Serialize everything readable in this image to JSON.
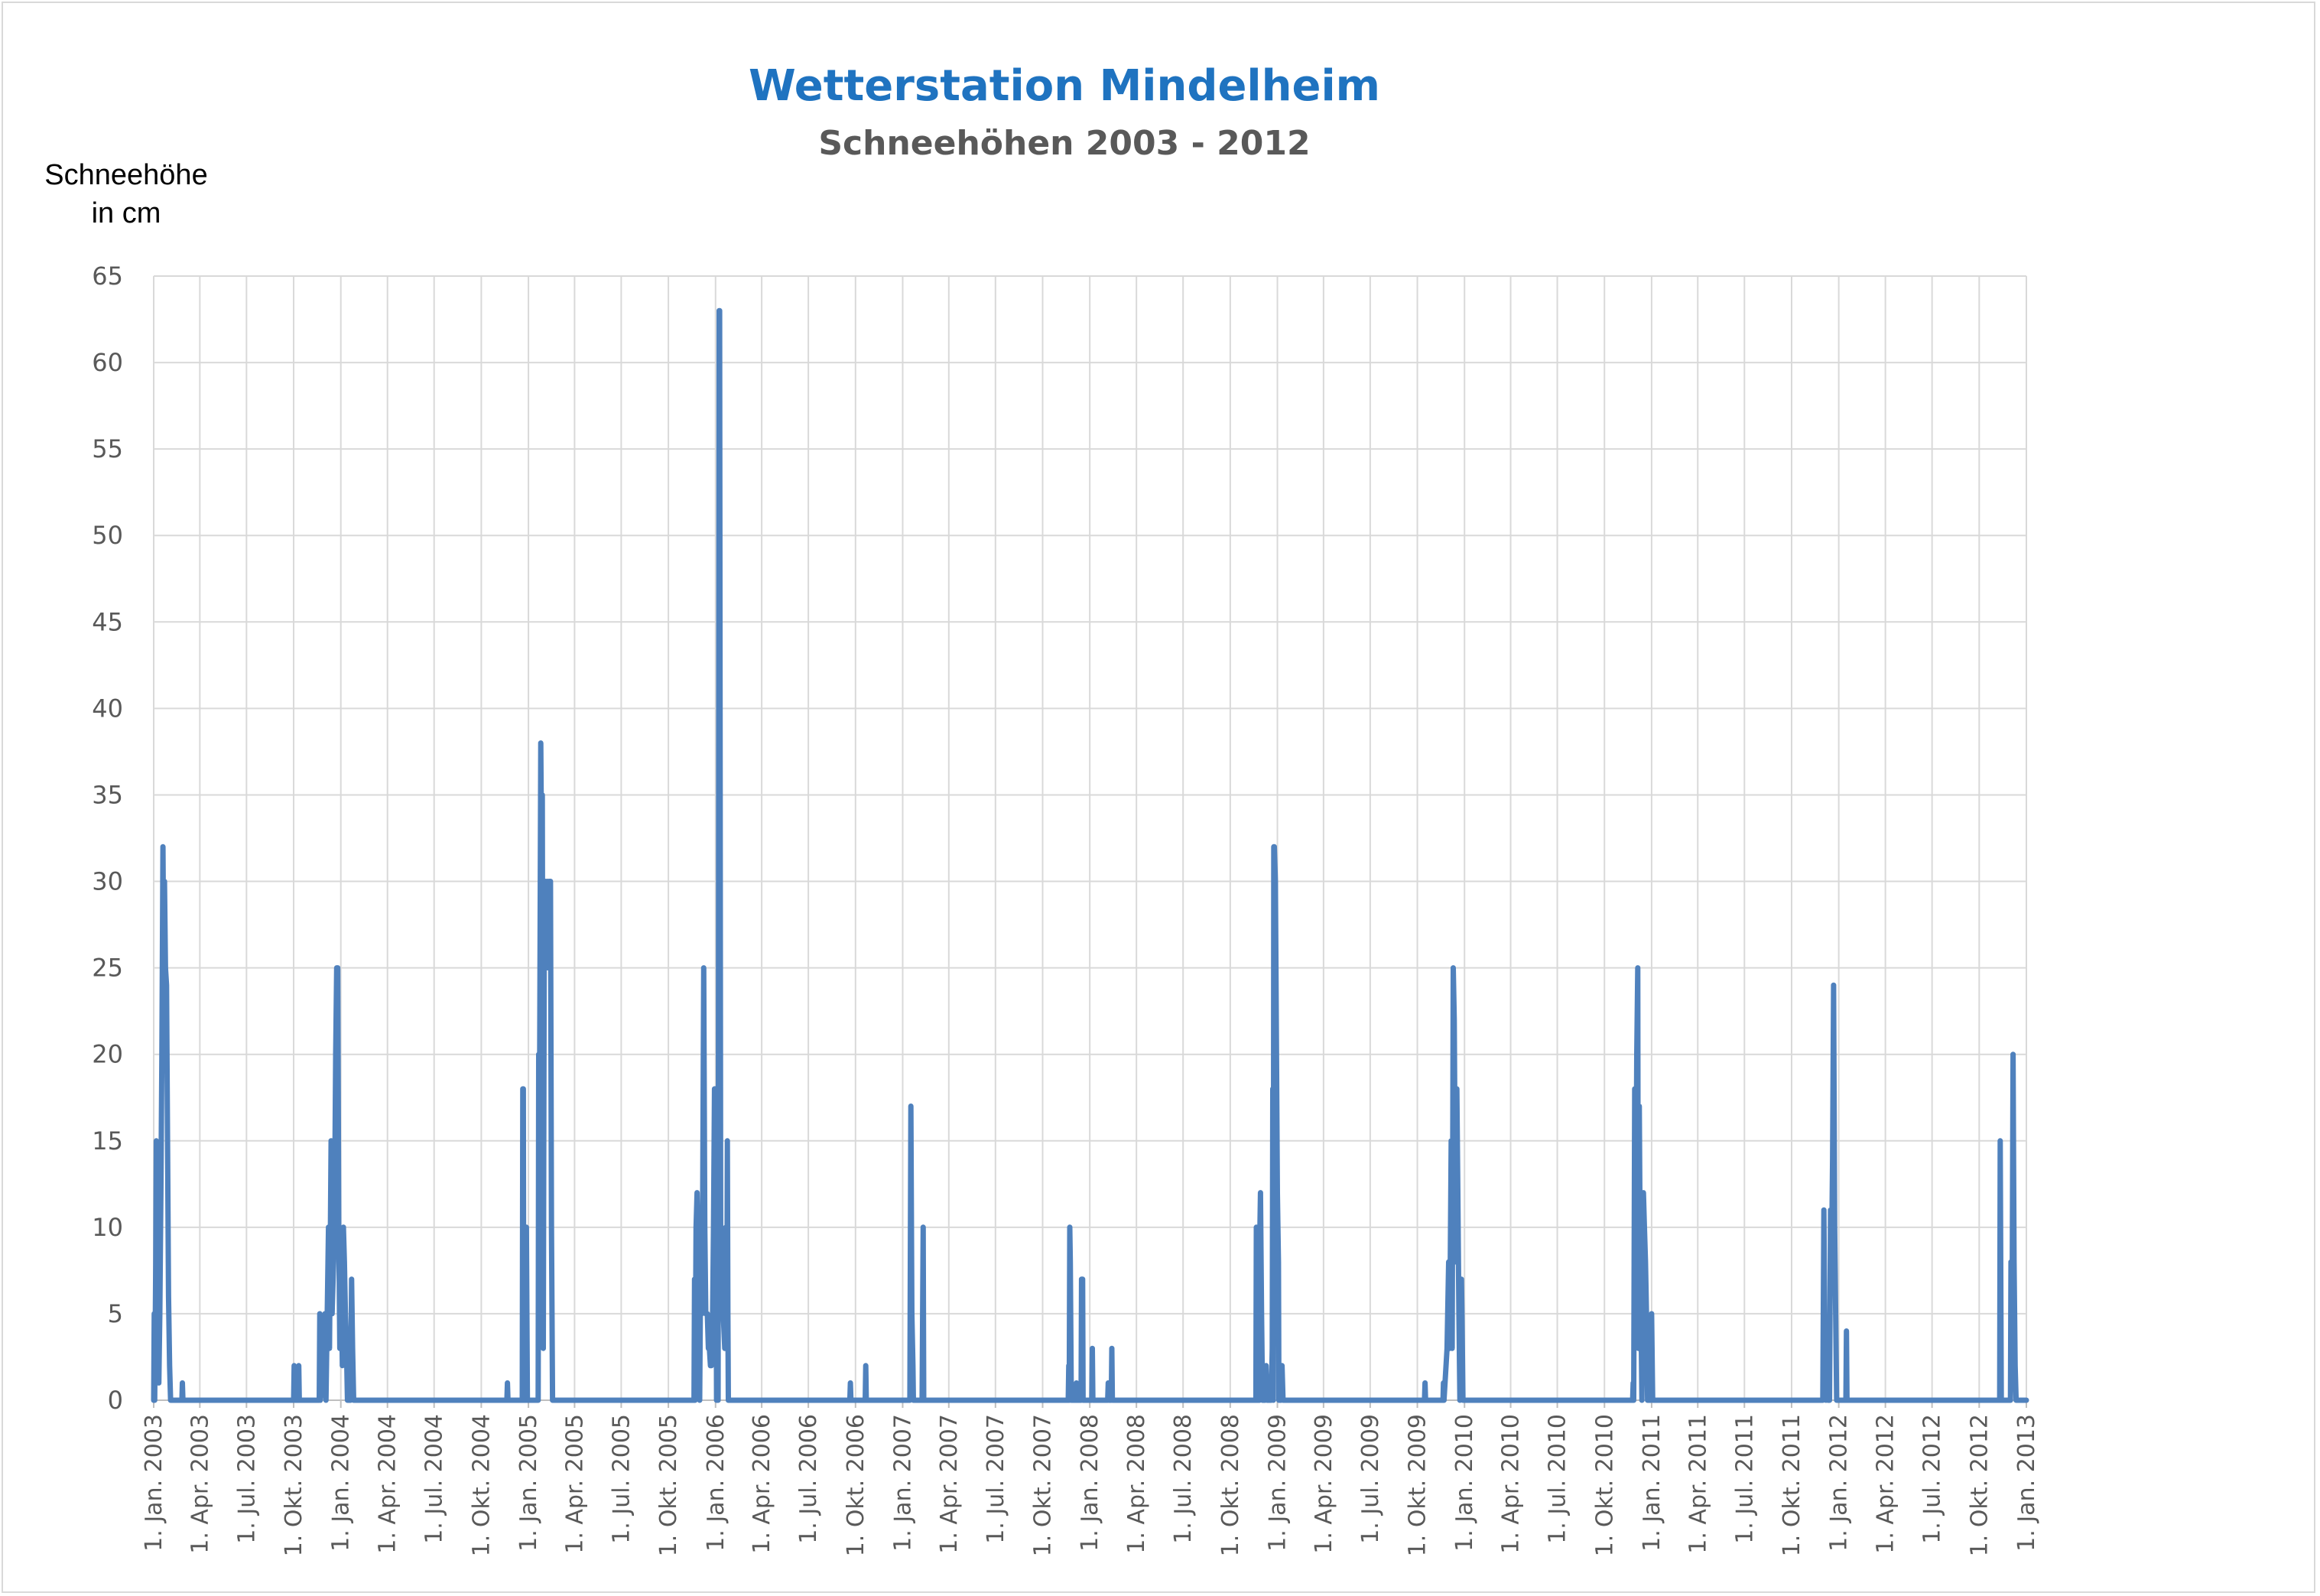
{
  "chart_data": {
    "type": "line",
    "title": "Wetterstation Mindelheim",
    "subtitle": "Schneehöhen 2003 - 2012",
    "ylabel_lines": [
      "Schneehöhe",
      "in  cm"
    ],
    "xlabel": "",
    "ylim": [
      0,
      65
    ],
    "yticks": [
      0,
      5,
      10,
      15,
      20,
      25,
      30,
      35,
      40,
      45,
      50,
      55,
      60,
      65
    ],
    "xlim": [
      "2003-01-01",
      "2013-01-01"
    ],
    "xtick_dates": [
      "2003-01-01",
      "2003-04-01",
      "2003-07-01",
      "2003-10-01",
      "2004-01-01",
      "2004-04-01",
      "2004-07-01",
      "2004-10-01",
      "2005-01-01",
      "2005-04-01",
      "2005-07-01",
      "2005-10-01",
      "2006-01-01",
      "2006-04-01",
      "2006-07-01",
      "2006-10-01",
      "2007-01-01",
      "2007-04-01",
      "2007-07-01",
      "2007-10-01",
      "2008-01-01",
      "2008-04-01",
      "2008-07-01",
      "2008-10-01",
      "2009-01-01",
      "2009-04-01",
      "2009-07-01",
      "2009-10-01",
      "2010-01-01",
      "2010-04-01",
      "2010-07-01",
      "2010-10-01",
      "2011-01-01",
      "2011-04-01",
      "2011-07-01",
      "2011-10-01",
      "2012-01-01",
      "2012-04-01",
      "2012-07-01",
      "2012-10-01",
      "2013-01-01"
    ],
    "xtick_labels": [
      "1. Jan. 2003",
      "1. Apr. 2003",
      "1. Jul. 2003",
      "1. Okt. 2003",
      "1. Jan. 2004",
      "1. Apr. 2004",
      "1. Jul. 2004",
      "1. Okt. 2004",
      "1. Jan. 2005",
      "1. Apr. 2005",
      "1. Jul. 2005",
      "1. Okt. 2005",
      "1. Jan. 2006",
      "1. Apr. 2006",
      "1. Jul. 2006",
      "1. Okt. 2006",
      "1. Jan. 2007",
      "1. Apr. 2007",
      "1. Jul. 2007",
      "1. Okt. 2007",
      "1. Jan. 2008",
      "1. Apr. 2008",
      "1. Jul. 2008",
      "1. Okt. 2008",
      "1. Jan. 2009",
      "1. Apr. 2009",
      "1. Jul. 2009",
      "1. Okt. 2009",
      "1. Jan. 2010",
      "1. Apr. 2010",
      "1. Jul. 2010",
      "1. Okt. 2010",
      "1. Jan. 2011",
      "1. Apr. 2011",
      "1. Jul. 2011",
      "1. Okt. 2011",
      "1. Jan. 2012",
      "1. Apr. 2012",
      "1. Jul. 2012",
      "1. Okt. 2012",
      "1. Jan. 2013"
    ],
    "grid": true,
    "legend": "none",
    "series_color": "#4f81bd",
    "series": [
      {
        "points": [
          [
            "2003-01-01",
            0
          ],
          [
            "2003-01-02",
            5
          ],
          [
            "2003-01-03",
            0
          ],
          [
            "2003-01-05",
            8
          ],
          [
            "2003-01-06",
            15
          ],
          [
            "2003-01-08",
            10
          ],
          [
            "2003-01-10",
            2
          ],
          [
            "2003-01-11",
            1
          ],
          [
            "2003-01-13",
            5
          ],
          [
            "2003-01-15",
            12
          ],
          [
            "2003-01-17",
            20
          ],
          [
            "2003-01-19",
            32
          ],
          [
            "2003-01-20",
            28
          ],
          [
            "2003-01-22",
            30
          ],
          [
            "2003-01-24",
            25
          ],
          [
            "2003-01-26",
            24
          ],
          [
            "2003-01-28",
            15
          ],
          [
            "2003-01-30",
            6
          ],
          [
            "2003-02-01",
            2
          ],
          [
            "2003-02-03",
            0
          ],
          [
            "2003-02-25",
            0
          ],
          [
            "2003-02-26",
            1
          ],
          [
            "2003-02-27",
            0
          ],
          [
            "2003-10-01",
            0
          ],
          [
            "2003-10-02",
            2
          ],
          [
            "2003-10-03",
            0
          ],
          [
            "2003-10-10",
            0
          ],
          [
            "2003-10-11",
            2
          ],
          [
            "2003-10-12",
            0
          ],
          [
            "2003-11-20",
            0
          ],
          [
            "2003-11-21",
            5
          ],
          [
            "2003-11-22",
            0
          ],
          [
            "2003-11-28",
            2
          ],
          [
            "2003-12-01",
            5
          ],
          [
            "2003-12-03",
            0
          ],
          [
            "2003-12-08",
            10
          ],
          [
            "2003-12-10",
            3
          ],
          [
            "2003-12-13",
            15
          ],
          [
            "2003-12-15",
            5
          ],
          [
            "2003-12-18",
            8
          ],
          [
            "2003-12-20",
            12
          ],
          [
            "2003-12-22",
            20
          ],
          [
            "2003-12-24",
            25
          ],
          [
            "2003-12-26",
            25
          ],
          [
            "2003-12-28",
            10
          ],
          [
            "2003-12-30",
            3
          ],
          [
            "2004-01-02",
            7
          ],
          [
            "2004-01-04",
            2
          ],
          [
            "2004-01-06",
            10
          ],
          [
            "2004-01-08",
            8
          ],
          [
            "2004-01-10",
            5
          ],
          [
            "2004-01-12",
            3
          ],
          [
            "2004-01-14",
            0
          ],
          [
            "2004-01-20",
            0
          ],
          [
            "2004-01-22",
            7
          ],
          [
            "2004-01-24",
            3
          ],
          [
            "2004-01-26",
            0
          ],
          [
            "2004-11-20",
            0
          ],
          [
            "2004-11-21",
            1
          ],
          [
            "2004-11-22",
            0
          ],
          [
            "2004-12-20",
            0
          ],
          [
            "2004-12-21",
            18
          ],
          [
            "2004-12-22",
            18
          ],
          [
            "2004-12-23",
            0
          ],
          [
            "2004-12-27",
            0
          ],
          [
            "2004-12-28",
            10
          ],
          [
            "2004-12-30",
            0
          ],
          [
            "2005-01-20",
            0
          ],
          [
            "2005-01-21",
            20
          ],
          [
            "2005-01-23",
            20
          ],
          [
            "2005-01-25",
            38
          ],
          [
            "2005-01-27",
            30
          ],
          [
            "2005-01-28",
            35
          ],
          [
            "2005-01-30",
            3
          ],
          [
            "2005-02-01",
            30
          ],
          [
            "2005-02-03",
            30
          ],
          [
            "2005-02-05",
            25
          ],
          [
            "2005-02-07",
            30
          ],
          [
            "2005-02-09",
            25
          ],
          [
            "2005-02-11",
            30
          ],
          [
            "2005-02-13",
            30
          ],
          [
            "2005-02-15",
            10
          ],
          [
            "2005-02-17",
            0
          ],
          [
            "2005-11-20",
            0
          ],
          [
            "2005-11-21",
            7
          ],
          [
            "2005-11-22",
            0
          ],
          [
            "2005-11-24",
            10
          ],
          [
            "2005-11-26",
            12
          ],
          [
            "2005-11-28",
            8
          ],
          [
            "2005-12-01",
            0
          ],
          [
            "2005-12-03",
            8
          ],
          [
            "2005-12-05",
            5
          ],
          [
            "2005-12-07",
            12
          ],
          [
            "2005-12-09",
            25
          ],
          [
            "2005-12-11",
            10
          ],
          [
            "2005-12-13",
            5
          ],
          [
            "2005-12-16",
            5
          ],
          [
            "2005-12-18",
            3
          ],
          [
            "2005-12-20",
            3
          ],
          [
            "2005-12-22",
            2
          ],
          [
            "2005-12-24",
            2
          ],
          [
            "2005-12-26",
            4
          ],
          [
            "2005-12-28",
            10
          ],
          [
            "2005-12-30",
            18
          ],
          [
            "2006-01-01",
            18
          ],
          [
            "2006-01-03",
            0
          ],
          [
            "2006-01-06",
            0
          ],
          [
            "2006-01-08",
            63
          ],
          [
            "2006-01-09",
            63
          ],
          [
            "2006-01-11",
            8
          ],
          [
            "2006-01-13",
            8
          ],
          [
            "2006-01-16",
            5
          ],
          [
            "2006-01-19",
            3
          ],
          [
            "2006-01-21",
            10
          ],
          [
            "2006-01-23",
            3
          ],
          [
            "2006-01-24",
            15
          ],
          [
            "2006-01-25",
            5
          ],
          [
            "2006-01-26",
            0
          ],
          [
            "2006-09-20",
            0
          ],
          [
            "2006-09-21",
            1
          ],
          [
            "2006-09-22",
            0
          ],
          [
            "2006-10-20",
            0
          ],
          [
            "2006-10-21",
            2
          ],
          [
            "2006-10-22",
            0
          ],
          [
            "2007-01-15",
            0
          ],
          [
            "2007-01-17",
            17
          ],
          [
            "2007-01-19",
            5
          ],
          [
            "2007-01-21",
            2
          ],
          [
            "2007-01-22",
            0
          ],
          [
            "2007-02-08",
            0
          ],
          [
            "2007-02-10",
            10
          ],
          [
            "2007-02-11",
            0
          ],
          [
            "2007-11-20",
            0
          ],
          [
            "2007-11-21",
            2
          ],
          [
            "2007-11-22",
            0
          ],
          [
            "2007-11-23",
            10
          ],
          [
            "2007-11-24",
            8
          ],
          [
            "2007-11-26",
            0
          ],
          [
            "2007-12-05",
            0
          ],
          [
            "2007-12-06",
            1
          ],
          [
            "2007-12-07",
            0
          ],
          [
            "2007-12-15",
            0
          ],
          [
            "2007-12-16",
            7
          ],
          [
            "2007-12-18",
            7
          ],
          [
            "2007-12-19",
            0
          ],
          [
            "2008-01-05",
            0
          ],
          [
            "2008-01-06",
            3
          ],
          [
            "2008-01-07",
            0
          ],
          [
            "2008-02-05",
            0
          ],
          [
            "2008-02-06",
            1
          ],
          [
            "2008-02-07",
            0
          ],
          [
            "2008-02-12",
            0
          ],
          [
            "2008-02-13",
            3
          ],
          [
            "2008-02-14",
            0
          ],
          [
            "2008-11-20",
            0
          ],
          [
            "2008-11-21",
            10
          ],
          [
            "2008-11-23",
            0
          ],
          [
            "2008-11-27",
            0
          ],
          [
            "2008-11-28",
            10
          ],
          [
            "2008-11-29",
            12
          ],
          [
            "2008-12-01",
            5
          ],
          [
            "2008-12-03",
            0
          ],
          [
            "2008-12-08",
            0
          ],
          [
            "2008-12-10",
            2
          ],
          [
            "2008-12-12",
            0
          ],
          [
            "2008-12-20",
            0
          ],
          [
            "2008-12-22",
            3
          ],
          [
            "2008-12-23",
            18
          ],
          [
            "2008-12-24",
            0
          ],
          [
            "2008-12-25",
            32
          ],
          [
            "2008-12-26",
            32
          ],
          [
            "2008-12-28",
            30
          ],
          [
            "2009-01-01",
            12
          ],
          [
            "2009-01-03",
            8
          ],
          [
            "2009-01-04",
            0
          ],
          [
            "2009-01-08",
            0
          ],
          [
            "2009-01-10",
            2
          ],
          [
            "2009-01-12",
            0
          ],
          [
            "2009-10-15",
            0
          ],
          [
            "2009-10-16",
            1
          ],
          [
            "2009-10-17",
            0
          ],
          [
            "2009-11-20",
            0
          ],
          [
            "2009-11-21",
            1
          ],
          [
            "2009-11-22",
            0
          ],
          [
            "2009-11-28",
            3
          ],
          [
            "2009-12-01",
            8
          ],
          [
            "2009-12-03",
            3
          ],
          [
            "2009-12-06",
            15
          ],
          [
            "2009-12-08",
            3
          ],
          [
            "2009-12-10",
            25
          ],
          [
            "2009-12-12",
            22
          ],
          [
            "2009-12-15",
            8
          ],
          [
            "2009-12-17",
            18
          ],
          [
            "2009-12-19",
            12
          ],
          [
            "2009-12-21",
            5
          ],
          [
            "2009-12-23",
            0
          ],
          [
            "2009-12-24",
            7
          ],
          [
            "2009-12-26",
            7
          ],
          [
            "2009-12-27",
            5
          ],
          [
            "2009-12-29",
            0
          ],
          [
            "2010-11-25",
            0
          ],
          [
            "2010-11-26",
            1
          ],
          [
            "2010-11-27",
            0
          ],
          [
            "2010-11-29",
            18
          ],
          [
            "2010-12-01",
            8
          ],
          [
            "2010-12-03",
            20
          ],
          [
            "2010-12-05",
            25
          ],
          [
            "2010-12-06",
            3
          ],
          [
            "2010-12-08",
            17
          ],
          [
            "2010-12-10",
            7
          ],
          [
            "2010-12-12",
            3
          ],
          [
            "2010-12-13",
            0
          ],
          [
            "2010-12-16",
            12
          ],
          [
            "2010-12-18",
            10
          ],
          [
            "2010-12-20",
            8
          ],
          [
            "2010-12-22",
            5
          ],
          [
            "2010-12-24",
            0
          ],
          [
            "2010-12-30",
            0
          ],
          [
            "2011-01-01",
            5
          ],
          [
            "2011-01-03",
            0
          ],
          [
            "2011-12-01",
            0
          ],
          [
            "2011-12-03",
            11
          ],
          [
            "2011-12-05",
            3
          ],
          [
            "2011-12-07",
            0
          ],
          [
            "2011-12-09",
            1
          ],
          [
            "2011-12-11",
            0
          ],
          [
            "2011-12-13",
            3
          ],
          [
            "2011-12-14",
            0
          ],
          [
            "2011-12-16",
            11
          ],
          [
            "2011-12-18",
            8
          ],
          [
            "2011-12-20",
            14
          ],
          [
            "2011-12-22",
            24
          ],
          [
            "2011-12-24",
            10
          ],
          [
            "2011-12-26",
            5
          ],
          [
            "2011-12-28",
            0
          ],
          [
            "2012-01-15",
            0
          ],
          [
            "2012-01-16",
            4
          ],
          [
            "2012-01-17",
            0
          ],
          [
            "2012-11-10",
            0
          ],
          [
            "2012-11-11",
            15
          ],
          [
            "2012-11-13",
            0
          ],
          [
            "2012-12-01",
            0
          ],
          [
            "2012-12-02",
            8
          ],
          [
            "2012-12-04",
            3
          ],
          [
            "2012-12-06",
            20
          ],
          [
            "2012-12-08",
            8
          ],
          [
            "2012-12-10",
            2
          ],
          [
            "2012-12-12",
            0
          ],
          [
            "2013-01-01",
            0
          ]
        ]
      }
    ]
  }
}
